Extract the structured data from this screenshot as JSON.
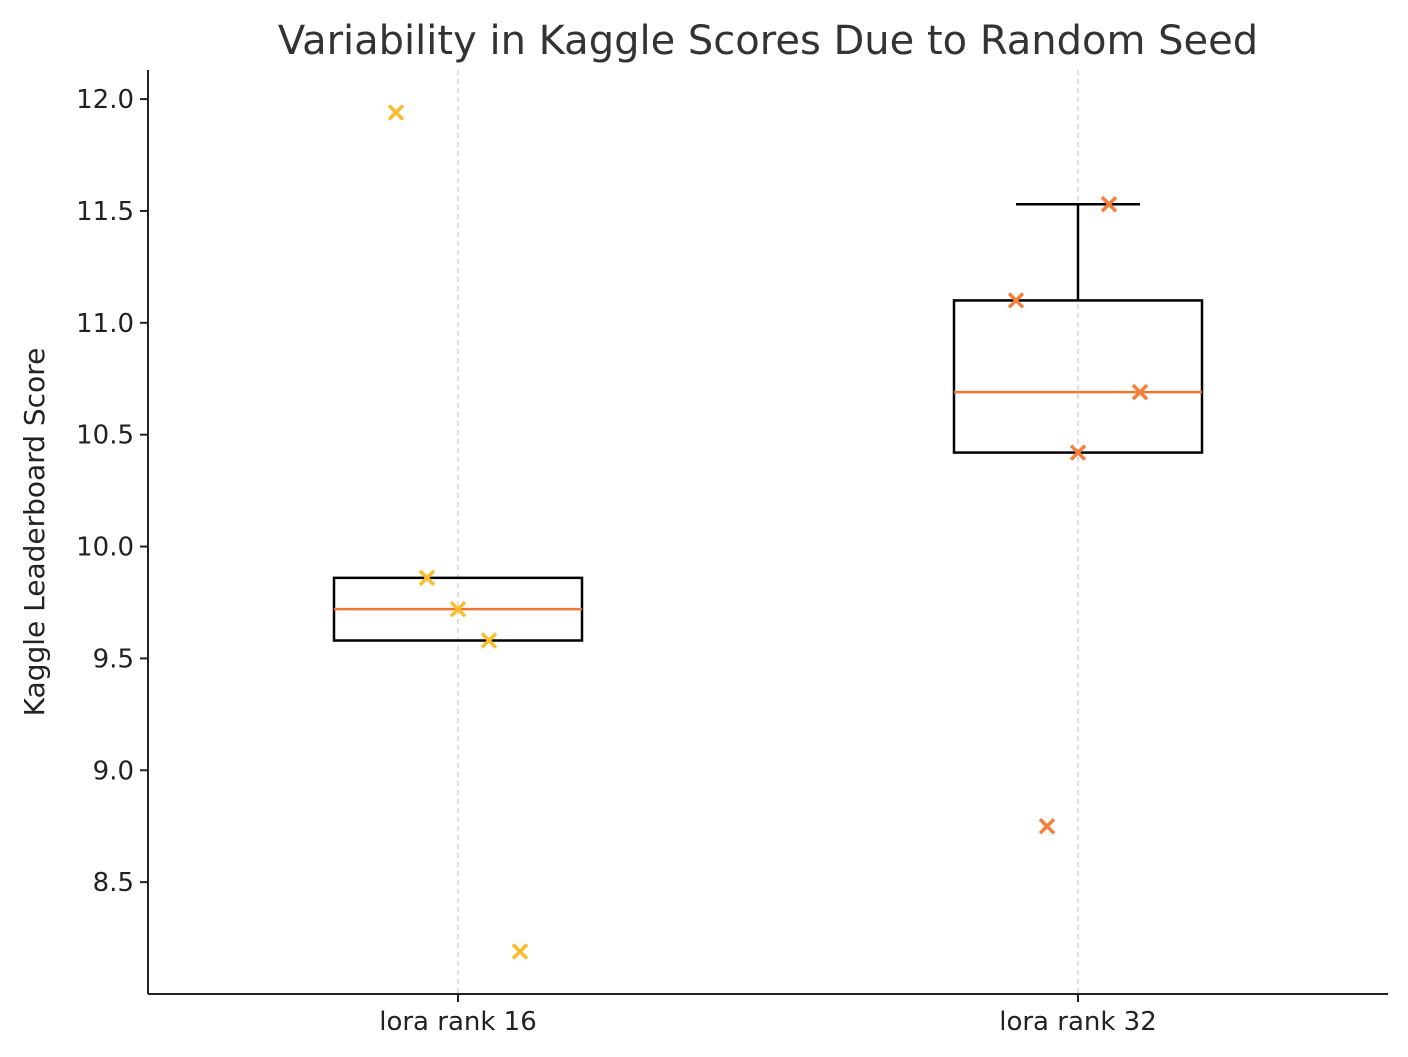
{
  "chart_data": {
    "type": "box",
    "title": "Variability in Kaggle Scores Due to Random Seed",
    "xlabel": "",
    "ylabel": "Kaggle Leaderboard Score",
    "categories": [
      "lora rank 16",
      "lora rank 32"
    ],
    "ylim": [
      8.0,
      12.13
    ],
    "xlim": [
      0.5,
      2.5
    ],
    "yticks": [
      8.5,
      9.0,
      9.5,
      10.0,
      10.5,
      11.0,
      11.5,
      12.0
    ],
    "ytick_labels": [
      "8.5",
      "9.0",
      "9.5",
      "10.0",
      "10.5",
      "11.0",
      "11.5",
      "12.0"
    ],
    "grid": "vertical dashed at categories",
    "boxes": [
      {
        "name": "lora rank 16",
        "q1": 9.58,
        "median": 9.72,
        "q3": 9.86,
        "whisker_low": 9.58,
        "whisker_high": 9.86
      },
      {
        "name": "lora rank 32",
        "q1": 10.42,
        "median": 10.69,
        "q3": 11.1,
        "whisker_low": 10.42,
        "whisker_high": 11.53
      }
    ],
    "series": [
      {
        "name": "lora rank 16",
        "color": "#FBBC2C",
        "x_offsets": [
          -0.1,
          -0.05,
          0,
          0.05,
          0.1
        ],
        "values": [
          11.94,
          9.86,
          9.72,
          9.58,
          8.19
        ]
      },
      {
        "name": "lora rank 32",
        "color": "#F5803E",
        "x_offsets": [
          -0.1,
          -0.05,
          0,
          0.05,
          0.1
        ],
        "values": [
          11.1,
          8.75,
          10.42,
          11.53,
          10.69
        ]
      }
    ],
    "colors": {
      "median": "#EE7733",
      "box": "#000000",
      "grid": "#cccccc"
    }
  }
}
